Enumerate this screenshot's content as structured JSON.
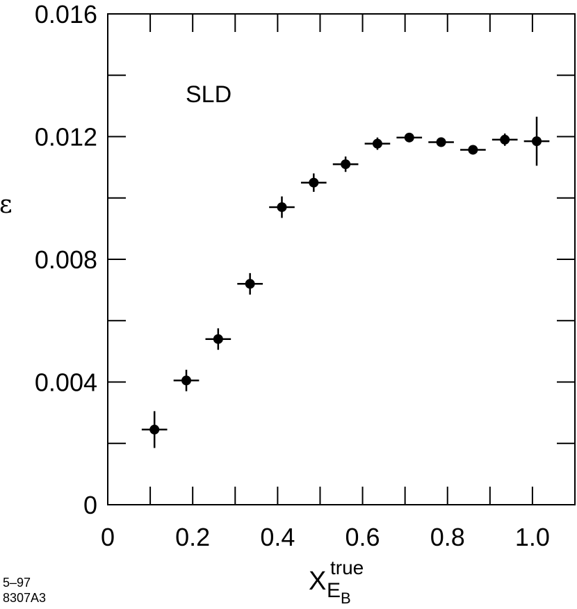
{
  "chart_data": {
    "type": "scatter",
    "title": "",
    "annotation": "SLD",
    "ylabel": "ε",
    "xlabel": {
      "base": "X",
      "subscript": "E",
      "subsubscript": "B",
      "superscript": "true"
    },
    "xlim": [
      0,
      1.1
    ],
    "ylim": [
      0,
      0.016
    ],
    "x_ticks": [
      0,
      0.2,
      0.4,
      0.6,
      0.8,
      1.0
    ],
    "x_tick_labels": [
      "0",
      "0.2",
      "0.4",
      "0.6",
      "0.8",
      "1.0"
    ],
    "x_minor_ticks": [
      0.1,
      0.3,
      0.5,
      0.7,
      0.9
    ],
    "y_ticks": [
      0,
      0.004,
      0.008,
      0.012,
      0.016
    ],
    "y_tick_labels": [
      "0",
      "0.004",
      "0.008",
      "0.012",
      "0.016"
    ],
    "y_minor_ticks": [
      0.002,
      0.006,
      0.01,
      0.014
    ],
    "grid": false,
    "series": [
      {
        "points": [
          {
            "x": 0.11,
            "y": 0.00245,
            "xerr": 0.03,
            "yerr": 0.0006
          },
          {
            "x": 0.185,
            "y": 0.00405,
            "xerr": 0.03,
            "yerr": 0.00035
          },
          {
            "x": 0.26,
            "y": 0.0054,
            "xerr": 0.03,
            "yerr": 0.00035
          },
          {
            "x": 0.335,
            "y": 0.0072,
            "xerr": 0.03,
            "yerr": 0.00035
          },
          {
            "x": 0.41,
            "y": 0.0097,
            "xerr": 0.03,
            "yerr": 0.00035
          },
          {
            "x": 0.485,
            "y": 0.0105,
            "xerr": 0.03,
            "yerr": 0.0003
          },
          {
            "x": 0.56,
            "y": 0.0111,
            "xerr": 0.03,
            "yerr": 0.00025
          },
          {
            "x": 0.635,
            "y": 0.01177,
            "xerr": 0.03,
            "yerr": 0.0002
          },
          {
            "x": 0.71,
            "y": 0.01197,
            "xerr": 0.03,
            "yerr": 0.00015
          },
          {
            "x": 0.785,
            "y": 0.01182,
            "xerr": 0.03,
            "yerr": 0.00015
          },
          {
            "x": 0.86,
            "y": 0.01157,
            "xerr": 0.03,
            "yerr": 0.00012
          },
          {
            "x": 0.935,
            "y": 0.0119,
            "xerr": 0.03,
            "yerr": 0.0002
          },
          {
            "x": 1.01,
            "y": 0.01185,
            "xerr": 0.03,
            "yerr": 0.0008
          }
        ]
      }
    ]
  },
  "footer": {
    "line1": "5–97",
    "line2": "8307A3"
  }
}
